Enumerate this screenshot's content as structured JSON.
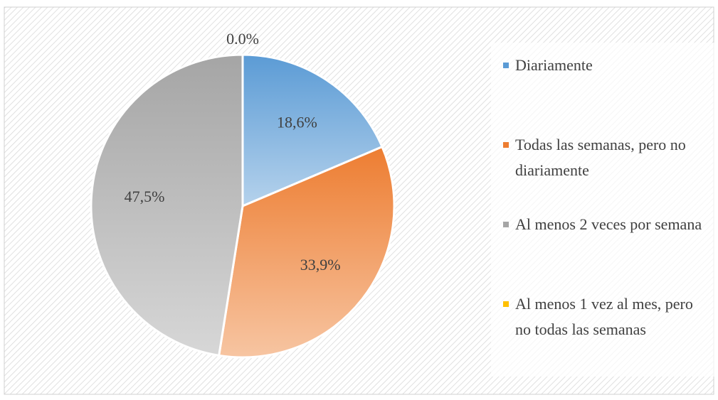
{
  "chart_data": {
    "type": "pie",
    "categories": [
      "Diariamente",
      "Todas las semanas, pero no diariamente",
      "Al menos 2 veces por semana",
      "Al menos 1 vez al mes, pero no todas las semanas"
    ],
    "values": [
      18.6,
      33.9,
      47.5,
      0.0
    ],
    "value_labels": [
      "18,6%",
      "33,9%",
      "47,5%",
      "0.0%"
    ],
    "colors": [
      "#5b9bd5",
      "#ed7d31",
      "#a5a5a5",
      "#ffc000"
    ],
    "legend": "right"
  }
}
